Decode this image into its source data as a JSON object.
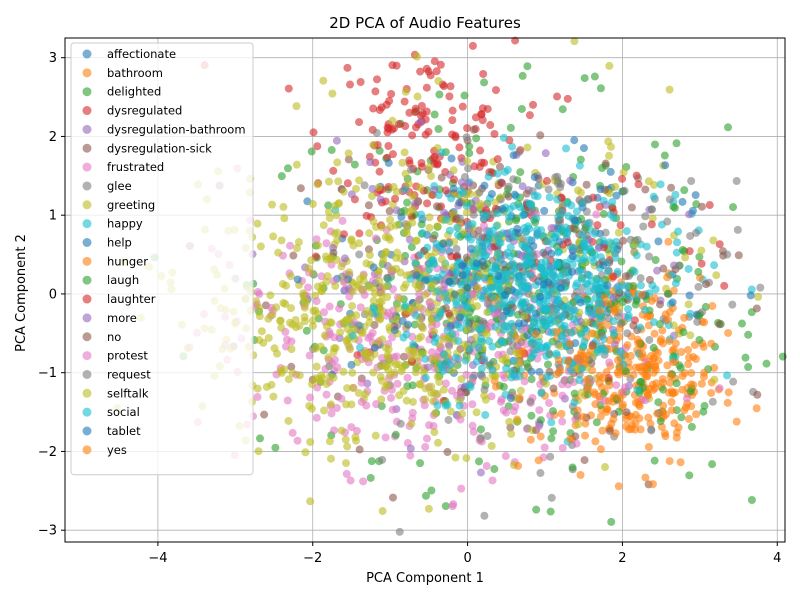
{
  "chart_data": {
    "type": "scatter",
    "title": "2D PCA of Audio Features",
    "xlabel": "PCA Component 1",
    "ylabel": "PCA Component 2",
    "xlim": [
      -5.2,
      4.1
    ],
    "ylim": [
      -3.15,
      3.25
    ],
    "xticks": [
      -4,
      -2,
      0,
      2,
      4
    ],
    "yticks": [
      -3,
      -2,
      -1,
      0,
      1,
      2,
      3
    ],
    "grid": true,
    "legend_position": "upper-left",
    "marker_alpha": 0.6,
    "series": [
      {
        "name": "affectionate",
        "color": "#1f77b4",
        "cluster": {
          "cx": 0.2,
          "cy": 0.3,
          "sx": 1.1,
          "sy": 0.7,
          "n": 60
        }
      },
      {
        "name": "bathroom",
        "color": "#ff7f0e",
        "cluster": {
          "cx": 2.3,
          "cy": -1.1,
          "sx": 0.5,
          "sy": 0.5,
          "n": 120
        }
      },
      {
        "name": "delighted",
        "color": "#2ca02c",
        "cluster": {
          "cx": 0.3,
          "cy": 0.2,
          "sx": 1.5,
          "sy": 1.1,
          "n": 260
        }
      },
      {
        "name": "dysregulated",
        "color": "#d62728",
        "cluster": {
          "cx": -0.6,
          "cy": 2.0,
          "sx": 0.6,
          "sy": 0.6,
          "n": 140
        }
      },
      {
        "name": "dysregulation-bathroom",
        "color": "#9467bd",
        "cluster": {
          "cx": 0.4,
          "cy": 0.3,
          "sx": 1.2,
          "sy": 0.9,
          "n": 80
        }
      },
      {
        "name": "dysregulation-sick",
        "color": "#8c564b",
        "cluster": {
          "cx": 0.2,
          "cy": 0.4,
          "sx": 1.3,
          "sy": 0.9,
          "n": 90
        }
      },
      {
        "name": "frustrated",
        "color": "#e377c2",
        "cluster": {
          "cx": -0.8,
          "cy": -0.6,
          "sx": 1.2,
          "sy": 0.8,
          "n": 200
        }
      },
      {
        "name": "glee",
        "color": "#7f7f7f",
        "cluster": {
          "cx": 0.9,
          "cy": -0.2,
          "sx": 1.3,
          "sy": 1.0,
          "n": 110
        }
      },
      {
        "name": "greeting",
        "color": "#bcbd22",
        "cluster": {
          "cx": 0.0,
          "cy": 0.3,
          "sx": 1.6,
          "sy": 1.0,
          "n": 240
        }
      },
      {
        "name": "happy",
        "color": "#17becf",
        "cluster": {
          "cx": 1.0,
          "cy": 0.3,
          "sx": 0.9,
          "sy": 0.6,
          "n": 160
        }
      },
      {
        "name": "help",
        "color": "#1f77b4",
        "cluster": {
          "cx": 0.8,
          "cy": 0.2,
          "sx": 1.0,
          "sy": 0.8,
          "n": 60
        }
      },
      {
        "name": "hunger",
        "color": "#ff7f0e",
        "cluster": {
          "cx": 1.8,
          "cy": -1.0,
          "sx": 0.6,
          "sy": 0.6,
          "n": 110
        }
      },
      {
        "name": "laugh",
        "color": "#2ca02c",
        "cluster": {
          "cx": 1.5,
          "cy": -0.6,
          "sx": 1.2,
          "sy": 0.9,
          "n": 150
        }
      },
      {
        "name": "laughter",
        "color": "#d62728",
        "cluster": {
          "cx": 1.0,
          "cy": 0.8,
          "sx": 1.3,
          "sy": 1.0,
          "n": 80
        }
      },
      {
        "name": "more",
        "color": "#9467bd",
        "cluster": {
          "cx": 0.0,
          "cy": 0.2,
          "sx": 1.2,
          "sy": 0.8,
          "n": 60
        }
      },
      {
        "name": "no",
        "color": "#8c564b",
        "cluster": {
          "cx": 1.0,
          "cy": -0.2,
          "sx": 1.3,
          "sy": 1.0,
          "n": 70
        }
      },
      {
        "name": "protest",
        "color": "#e377c2",
        "cluster": {
          "cx": -0.4,
          "cy": -0.9,
          "sx": 1.3,
          "sy": 0.7,
          "n": 160
        }
      },
      {
        "name": "request",
        "color": "#7f7f7f",
        "cluster": {
          "cx": 1.2,
          "cy": 0.4,
          "sx": 1.3,
          "sy": 0.9,
          "n": 80
        }
      },
      {
        "name": "selftalk",
        "color": "#bcbd22",
        "cluster": {
          "cx": -1.2,
          "cy": -0.3,
          "sx": 1.1,
          "sy": 0.8,
          "n": 420
        }
      },
      {
        "name": "social",
        "color": "#17becf",
        "cluster": {
          "cx": 0.8,
          "cy": 0.0,
          "sx": 0.8,
          "sy": 0.6,
          "n": 420
        }
      },
      {
        "name": "tablet",
        "color": "#1f77b4",
        "cluster": {
          "cx": 0.6,
          "cy": 0.3,
          "sx": 1.0,
          "sy": 0.7,
          "n": 60
        }
      },
      {
        "name": "yes",
        "color": "#ff7f0e",
        "cluster": {
          "cx": 2.1,
          "cy": -1.0,
          "sx": 0.6,
          "sy": 0.6,
          "n": 90
        }
      }
    ]
  }
}
